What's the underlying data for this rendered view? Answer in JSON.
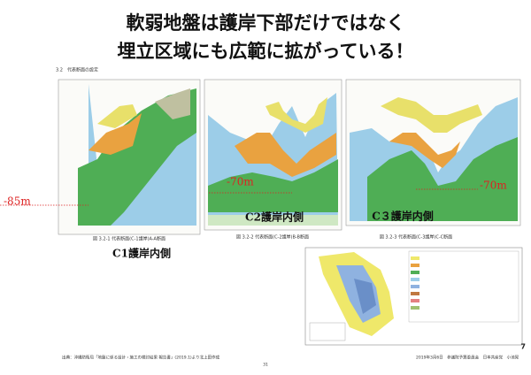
{
  "title": [
    "軟弱地盤は護岸下部だけではなく",
    "埋立区域にも広範に拡がっている！"
  ],
  "section_heading": "3.2　代表断面の設定",
  "sections": [
    {
      "depth_label": "-85m",
      "caption": "図 3.2-1 代表断面(C-1護岸)A-A断面",
      "side_label": "C1護岸内側"
    },
    {
      "depth_label": "-70m",
      "caption": "図 3.2-2 代表断面(C-2護岸)B-B断面",
      "side_label": "C2護岸内側"
    },
    {
      "depth_label": "-70m",
      "caption": "図 3.2-3 代表断面(C-3護岸)C-C断面",
      "side_label": "C３護岸内側"
    }
  ],
  "footer": {
    "source": "出典：沖縄防衛局「地盤に係る設計・施工の検討結果 報告書」(2019.1)より北上田作成",
    "center_page": "31",
    "date": "2019年3月6日　参議院予算委員会　日本共産党　小池晃",
    "page_number": "7"
  }
}
